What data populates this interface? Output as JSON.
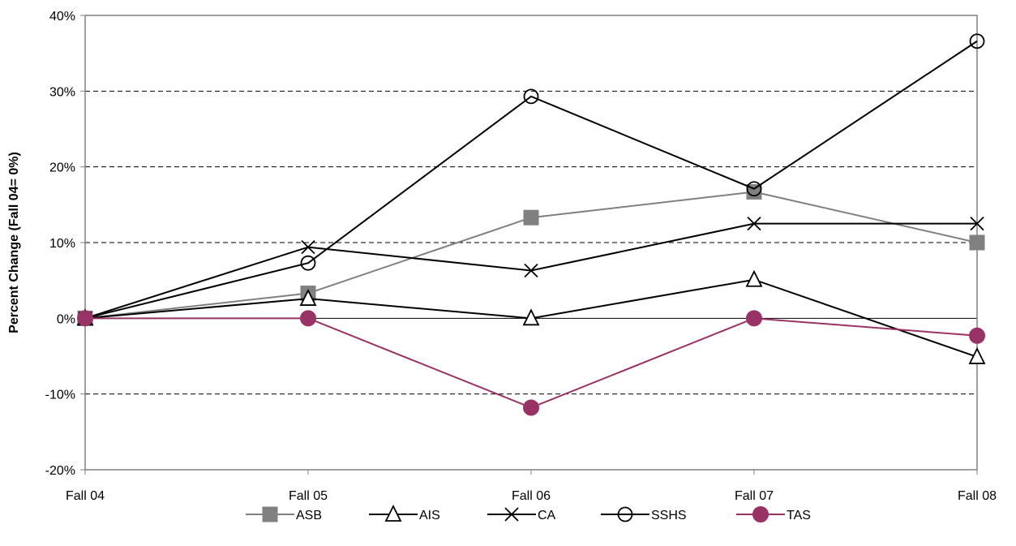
{
  "chart_data": {
    "type": "line",
    "title": "",
    "xlabel": "",
    "ylabel": "Percent Change (Fall 04= 0%)",
    "categories": [
      "Fall 04",
      "Fall 05",
      "Fall 06",
      "Fall 07",
      "Fall 08"
    ],
    "ylim": [
      -20,
      40
    ],
    "yticks": [
      -20,
      -10,
      0,
      10,
      20,
      30,
      40
    ],
    "ytick_labels": [
      "-20%",
      "-10%",
      "0%",
      "10%",
      "20%",
      "30%",
      "40%"
    ],
    "grid": "horizontal dashed",
    "legend_position": "bottom",
    "series": [
      {
        "name": "ASB",
        "values": [
          0,
          3.3,
          13.3,
          16.7,
          10.0
        ],
        "color": "#808080",
        "marker": "square"
      },
      {
        "name": "AIS",
        "values": [
          0,
          2.6,
          0,
          5.1,
          -5.1
        ],
        "color": "#000000",
        "marker": "triangle"
      },
      {
        "name": "CA",
        "values": [
          0,
          9.4,
          6.3,
          12.5,
          12.5
        ],
        "color": "#000000",
        "marker": "x"
      },
      {
        "name": "SSHS",
        "values": [
          0,
          7.3,
          29.3,
          17.1,
          36.6
        ],
        "color": "#000000",
        "marker": "circle-open"
      },
      {
        "name": "TAS",
        "values": [
          0,
          0,
          -11.8,
          0,
          -2.3
        ],
        "color": "#993366",
        "marker": "circle-filled"
      }
    ]
  }
}
